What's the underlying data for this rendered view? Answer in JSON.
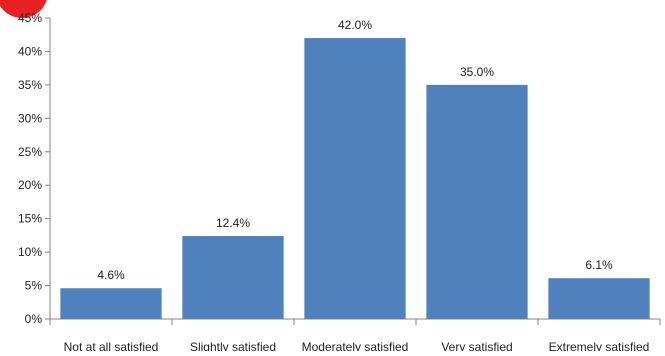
{
  "chart_data": {
    "type": "bar",
    "categories": [
      "Not at all satisfied",
      "Slightly satisfied",
      "Moderately satisfied",
      "Very satisfied",
      "Extremely satisfied"
    ],
    "values": [
      4.6,
      12.4,
      42.0,
      35.0,
      6.1
    ],
    "data_labels": [
      "4.6%",
      "12.4%",
      "42.0%",
      "35.0%",
      "6.1%"
    ],
    "y_ticks": [
      0,
      5,
      10,
      15,
      20,
      25,
      30,
      35,
      40,
      45
    ],
    "y_tick_labels": [
      "0%",
      "5%",
      "10%",
      "15%",
      "20%",
      "25%",
      "30%",
      "35%",
      "40%",
      "45%"
    ],
    "ylim": [
      0,
      45
    ],
    "title": "",
    "xlabel": "",
    "ylabel": "",
    "grid": false,
    "legend": "none",
    "bar_color": "#4f81bd",
    "badge_color": "#e8201f"
  }
}
